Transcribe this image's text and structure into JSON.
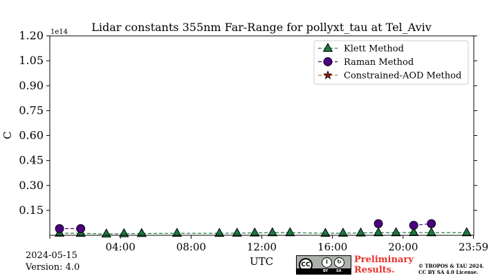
{
  "chart_data": {
    "type": "line",
    "title": "Lidar constants 355nm Far-Range for pollyxt_tau at Tel_Aviv",
    "xlabel": "UTC",
    "ylabel": "C",
    "y_multiplier_label": "1e14",
    "xlim": [
      0,
      24
    ],
    "ylim": [
      0,
      1.2
    ],
    "x_ticks": [
      4,
      8,
      12,
      16,
      20,
      23.983
    ],
    "x_tick_labels": [
      "04:00",
      "08:00",
      "12:00",
      "16:00",
      "20:00",
      "23:59"
    ],
    "y_ticks": [
      0.15,
      0.3,
      0.45,
      0.6,
      0.75,
      0.9,
      1.05,
      1.2
    ],
    "y_tick_labels": [
      "0.15",
      "0.30",
      "0.45",
      "0.60",
      "0.75",
      "0.90",
      "1.05",
      "1.20"
    ],
    "legend_position": "top-right",
    "series": [
      {
        "name": "Klett Method",
        "marker": "triangle",
        "color": "#1b7a3e",
        "line_color": "#1b7a3e",
        "x": [
          0.55,
          1.75,
          3.2,
          4.2,
          5.2,
          7.2,
          9.6,
          10.6,
          11.6,
          12.6,
          13.6,
          15.6,
          16.6,
          17.6,
          18.6,
          19.6,
          20.6,
          21.6,
          23.6
        ],
        "y": [
          0.013,
          0.012,
          0.008,
          0.01,
          0.011,
          0.012,
          0.012,
          0.013,
          0.014,
          0.016,
          0.016,
          0.012,
          0.013,
          0.014,
          0.016,
          0.016,
          0.017,
          0.016,
          0.016
        ]
      },
      {
        "name": "Raman Method",
        "marker": "circle",
        "color": "#4b0082",
        "line_color": "#4b0082",
        "x": [
          0.55,
          1.75,
          18.6,
          20.6,
          21.6
        ],
        "y": [
          0.04,
          0.04,
          0.07,
          0.06,
          0.07
        ],
        "segments": [
          [
            0,
            1
          ],
          [
            3,
            4
          ]
        ]
      },
      {
        "name": "Constrained-AOD Method",
        "marker": "star",
        "color": "#8b1a1a",
        "line_color": "#d2691e",
        "x": [],
        "y": []
      }
    ]
  },
  "footer": {
    "date": "2024-05-15",
    "version": "Version: 4.0",
    "preliminary_line1": "Preliminary",
    "preliminary_line2": "Results.",
    "copyright_line1": "© TROPOS & TAU 2024.",
    "copyright_line2": "CC BY SA 4.0 License.",
    "cc_label": "CC",
    "by_label": "BY",
    "sa_label": "SA"
  }
}
